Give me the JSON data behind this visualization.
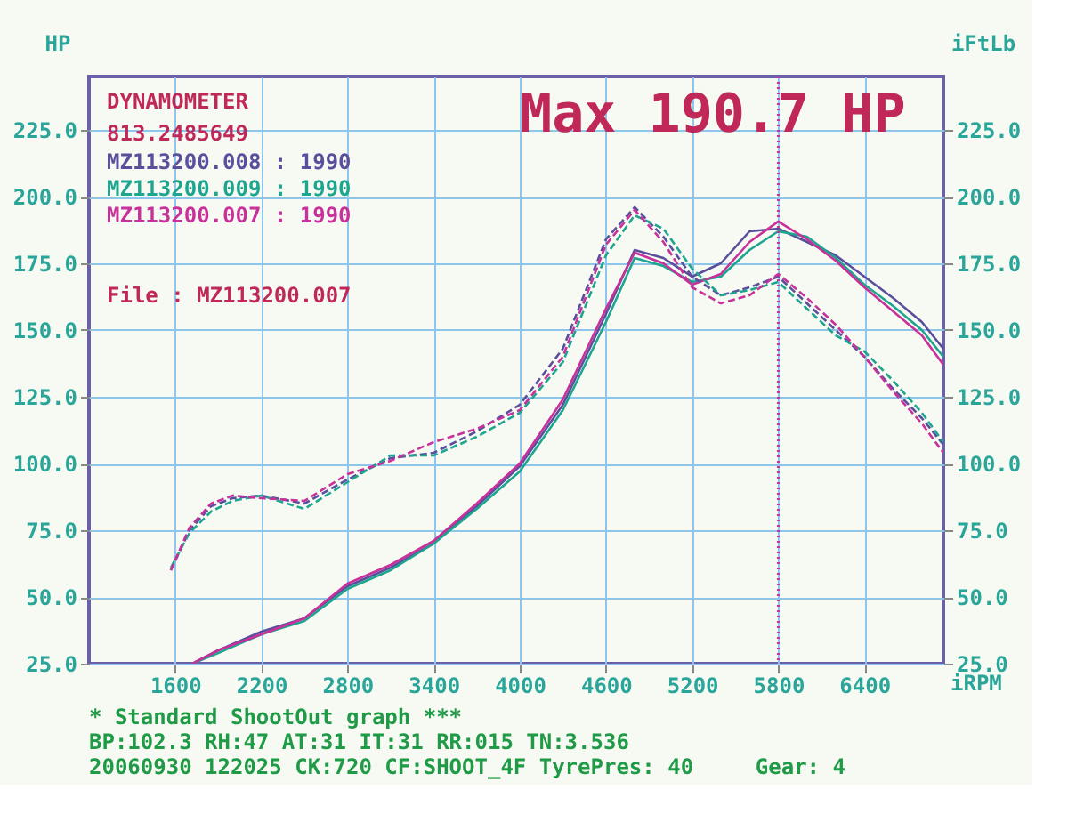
{
  "chart_data": {
    "type": "line",
    "title": "Max 190.7 HP",
    "xlabel": "iRPM",
    "ylabel": "HP",
    "y2label": "iFtLb",
    "xlim": [
      1000,
      6950
    ],
    "xticks": [
      1600,
      2200,
      2800,
      3400,
      4000,
      4600,
      5200,
      5800,
      6400
    ],
    "ylim": [
      25,
      245
    ],
    "yticks": [
      {
        "value": 25,
        "label": "25.0"
      },
      {
        "value": 50,
        "label": "50.0"
      },
      {
        "value": 75,
        "label": "75.0"
      },
      {
        "value": 100,
        "label": "100.0"
      },
      {
        "value": 125,
        "label": "125.0"
      },
      {
        "value": 150,
        "label": "150.0"
      },
      {
        "value": 175,
        "label": "175.0"
      },
      {
        "value": 200,
        "label": "200.0"
      },
      {
        "value": 225,
        "label": "225.0"
      }
    ],
    "y2lim": [
      25,
      245
    ],
    "y2ticks": [
      {
        "value": 25,
        "label": "25.0"
      },
      {
        "value": 50,
        "label": "50.0"
      },
      {
        "value": 75,
        "label": "75.0"
      },
      {
        "value": 100,
        "label": "100.0"
      },
      {
        "value": 125,
        "label": "125.0"
      },
      {
        "value": 150,
        "label": "150.0"
      },
      {
        "value": 175,
        "label": "175.0"
      },
      {
        "value": 200,
        "label": "200.0"
      },
      {
        "value": 225,
        "label": "225.0"
      }
    ],
    "grid": true,
    "legend": "top left",
    "series": [
      {
        "name": "MZ113200.008 : 1990",
        "color": "#5a4f9c",
        "line_style": "solid",
        "x": [
          1720,
          1900,
          2200,
          2500,
          2800,
          3100,
          3400,
          3700,
          4000,
          4300,
          4600,
          4800,
          5000,
          5200,
          5400,
          5600,
          5800,
          6000,
          6200,
          6400,
          6600,
          6800,
          6950
        ],
        "values": [
          25,
          30,
          37,
          42,
          54,
          61,
          70,
          84,
          99,
          122,
          156,
          180,
          177,
          170,
          175,
          187,
          188,
          183,
          178,
          170,
          162,
          153,
          143
        ]
      },
      {
        "name": "MZ113200.009 : 1990",
        "color": "#1ea58f",
        "line_style": "solid",
        "x": [
          1720,
          1900,
          2200,
          2500,
          2800,
          3100,
          3400,
          3700,
          4000,
          4300,
          4600,
          4800,
          5000,
          5200,
          5400,
          5600,
          5800,
          6000,
          6200,
          6400,
          6600,
          6800,
          6950
        ],
        "values": [
          25,
          29,
          36,
          41,
          53,
          60,
          70,
          83,
          97,
          120,
          153,
          177,
          174,
          168,
          170,
          180,
          187,
          185,
          177,
          167,
          159,
          150,
          140
        ]
      },
      {
        "name": "MZ113200.007 : 1990",
        "color": "#c8309a",
        "line_style": "solid",
        "x": [
          1720,
          1900,
          2200,
          2500,
          2800,
          3100,
          3400,
          3700,
          4000,
          4300,
          4600,
          4800,
          5000,
          5200,
          5400,
          5600,
          5800,
          6000,
          6200,
          6400,
          6600,
          6800,
          6950
        ],
        "values": [
          25,
          30,
          36,
          42,
          55,
          62,
          71,
          85,
          100,
          124,
          158,
          179,
          175,
          167,
          171,
          183,
          190.7,
          184,
          176,
          166,
          157,
          148,
          137
        ]
      },
      {
        "color": "#5a4f9c",
        "line_style": "dashed",
        "axis": "y2",
        "x": [
          1570,
          1700,
          1850,
          2000,
          2200,
          2500,
          2800,
          3100,
          3400,
          3700,
          4000,
          4300,
          4600,
          4800,
          5000,
          5200,
          5400,
          5600,
          5800,
          6000,
          6200,
          6400,
          6600,
          6800,
          6950
        ],
        "values": [
          60,
          75,
          84,
          87,
          88,
          85,
          94,
          102,
          104,
          112,
          122,
          143,
          184,
          196,
          185,
          170,
          163,
          166,
          170,
          160,
          150,
          140,
          128,
          117,
          107
        ]
      },
      {
        "color": "#1ea58f",
        "line_style": "dashed",
        "axis": "y2",
        "x": [
          1570,
          1700,
          1850,
          2000,
          2200,
          2500,
          2800,
          3100,
          3400,
          3700,
          4000,
          4300,
          4600,
          4800,
          5000,
          5200,
          5400,
          5600,
          5800,
          6000,
          6200,
          6400,
          6600,
          6800,
          6950
        ],
        "values": [
          61,
          74,
          82,
          86,
          88,
          83,
          93,
          103,
          103,
          110,
          119,
          138,
          178,
          193,
          188,
          173,
          163,
          165,
          168,
          158,
          148,
          142,
          131,
          119,
          108
        ]
      },
      {
        "color": "#c8309a",
        "line_style": "dashed",
        "axis": "y2",
        "x": [
          1570,
          1700,
          1850,
          2000,
          2200,
          2500,
          2800,
          3100,
          3400,
          3700,
          4000,
          4300,
          4600,
          4800,
          5000,
          5200,
          5400,
          5600,
          5800,
          6000,
          6200,
          6400,
          6600,
          6800,
          6950
        ],
        "values": [
          60,
          76,
          85,
          88,
          87,
          86,
          96,
          101,
          108,
          113,
          120,
          140,
          182,
          195,
          183,
          166,
          160,
          163,
          171,
          162,
          152,
          140,
          127,
          115,
          104
        ]
      }
    ],
    "ref_lines": [
      {
        "axis": "x",
        "value": 5800,
        "color": "#c8309a",
        "line_style": "dotted"
      }
    ],
    "annotations": [
      "DYNAMOMETER",
      "813.2485649",
      "File : MZ113200.007",
      "* Standard ShootOut graph ***",
      "BP:102.3 RH:47 AT:31 IT:31  RR:015 TN:3.536",
      "20060930 122025 CK:720 CF:SHOOT_4F TyrePres: 40",
      "Gear: 4"
    ]
  }
}
